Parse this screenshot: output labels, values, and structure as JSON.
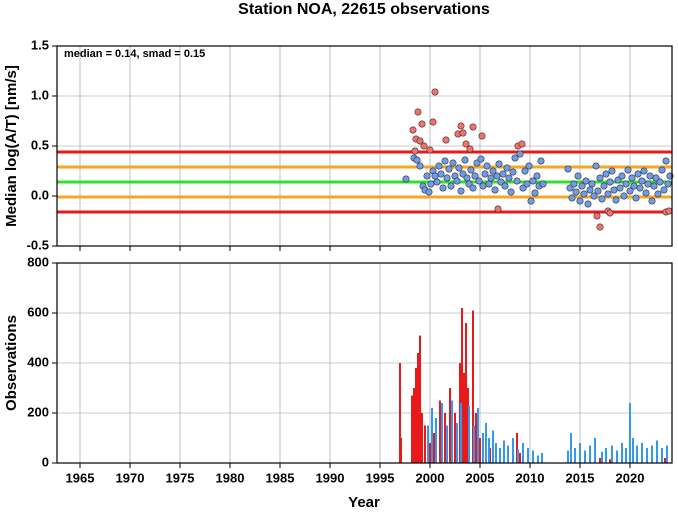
{
  "chart_data": [
    {
      "type": "scatter",
      "title": "Station NOA, 22615 observations",
      "ylabel": "Median log(A/T) [nm/s]",
      "annotation": "median = 0.14, smad = 0.15",
      "xlim": [
        1962.7,
        2024.2
      ],
      "xticks": [
        1965,
        1970,
        1975,
        1980,
        1985,
        1990,
        1995,
        2000,
        2005,
        2010,
        2015,
        2020
      ],
      "ylim": [
        -0.5,
        1.5
      ],
      "yticks": [
        -0.5,
        {
          "value": 0,
          "label": "0.0"
        },
        0.5,
        {
          "value": 1,
          "label": "1.0"
        },
        1.5
      ],
      "grid": true,
      "hlines": [
        {
          "value": 0.44,
          "color": "#e8191a"
        },
        {
          "value": 0.29,
          "color": "#f5a623"
        },
        {
          "value": 0.14,
          "color": "#2fe02f"
        },
        {
          "value": -0.01,
          "color": "#f5a623"
        },
        {
          "value": -0.16,
          "color": "#e8191a"
        }
      ],
      "series": [
        {
          "color": "#f4706a",
          "x": [
            1998.3,
            1998.6,
            1998.8,
            1999.0,
            1999.2,
            1999.4,
            2000.5,
            2000.3,
            2001.6,
            2002.8,
            2003.1,
            2003.3,
            2003.6,
            2004.0,
            2004.3,
            2005.2,
            2008.8,
            2009.2,
            2006.8,
            2017.0,
            2016.7,
            2017.8,
            2018.0,
            2023.6,
            2023.9,
            1998.5,
            2000.0
          ],
          "values": [
            0.66,
            0.57,
            0.84,
            0.55,
            0.72,
            0.5,
            1.04,
            0.74,
            0.56,
            0.62,
            0.7,
            0.63,
            0.52,
            0.47,
            0.69,
            0.6,
            0.5,
            0.52,
            -0.13,
            -0.31,
            -0.2,
            -0.15,
            -0.17,
            -0.16,
            -0.15,
            0.45,
            0.46
          ]
        },
        {
          "color": "#6f9ce8",
          "x": [
            1997.6,
            1998.4,
            1998.7,
            1999.0,
            1999.3,
            1999.5,
            1999.7,
            1999.9,
            2000.1,
            2000.3,
            2000.5,
            2000.7,
            2000.9,
            2001.1,
            2001.3,
            2001.5,
            2001.7,
            2001.9,
            2002.1,
            2002.3,
            2002.5,
            2002.7,
            2002.9,
            2003.1,
            2003.3,
            2003.5,
            2003.7,
            2003.9,
            2004.1,
            2004.3,
            2004.5,
            2004.7,
            2004.9,
            2005.1,
            2005.3,
            2005.5,
            2005.7,
            2005.9,
            2006.1,
            2006.3,
            2006.5,
            2006.7,
            2006.9,
            2007.1,
            2007.3,
            2007.5,
            2007.7,
            2007.9,
            2008.1,
            2008.3,
            2008.5,
            2008.7,
            2009.0,
            2009.3,
            2009.5,
            2009.7,
            2009.9,
            2010.1,
            2010.3,
            2010.5,
            2010.7,
            2010.9,
            2011.1,
            2011.3,
            2013.8,
            2014.0,
            2014.2,
            2014.4,
            2014.6,
            2014.8,
            2015.0,
            2015.2,
            2015.4,
            2015.6,
            2015.8,
            2016.0,
            2016.2,
            2016.4,
            2016.6,
            2016.8,
            2017.0,
            2017.2,
            2017.4,
            2017.6,
            2017.8,
            2018.0,
            2018.2,
            2018.4,
            2018.6,
            2018.8,
            2019.0,
            2019.2,
            2019.4,
            2019.6,
            2019.8,
            2020.0,
            2020.2,
            2020.4,
            2020.6,
            2020.8,
            2021.0,
            2021.2,
            2021.4,
            2021.6,
            2021.8,
            2022.0,
            2022.2,
            2022.4,
            2022.6,
            2022.8,
            2023.0,
            2023.2,
            2023.4,
            2023.6,
            2023.8,
            2024.0
          ],
          "values": [
            0.17,
            0.38,
            0.36,
            0.3,
            0.1,
            0.06,
            0.2,
            0.04,
            0.12,
            0.25,
            0.2,
            0.14,
            0.3,
            0.22,
            0.08,
            0.35,
            0.18,
            0.27,
            0.1,
            0.33,
            0.2,
            0.15,
            0.28,
            0.05,
            0.22,
            0.36,
            0.18,
            0.12,
            0.26,
            0.08,
            0.2,
            0.33,
            0.15,
            0.37,
            0.1,
            0.22,
            0.3,
            0.12,
            0.18,
            0.25,
            0.06,
            0.2,
            0.32,
            0.14,
            0.22,
            0.1,
            0.28,
            0.18,
            0.04,
            0.24,
            0.38,
            0.15,
            0.42,
            0.08,
            0.25,
            0.12,
            0.3,
            -0.05,
            0.15,
            0.03,
            0.2,
            0.1,
            0.35,
            0.12,
            0.27,
            0.08,
            -0.02,
            0.12,
            0.04,
            0.2,
            -0.05,
            0.1,
            0.02,
            0.15,
            -0.08,
            0.06,
            0.12,
            0.0,
            0.3,
            0.05,
            0.18,
            -0.03,
            0.1,
            0.22,
            0.02,
            0.14,
            0.25,
            0.06,
            -0.04,
            0.16,
            0.08,
            0.2,
            0.0,
            0.12,
            0.26,
            0.05,
            0.18,
            0.1,
            -0.02,
            0.22,
            0.08,
            0.15,
            0.25,
            0.03,
            0.12,
            0.2,
            -0.05,
            0.1,
            0.18,
            0.02,
            0.14,
            0.26,
            0.06,
            0.35,
            0.12,
            0.2
          ]
        }
      ]
    },
    {
      "type": "bar",
      "xlabel": "Year",
      "ylabel": "Observations",
      "xlim": [
        1962.7,
        2024.2
      ],
      "xticks": [
        1965,
        1970,
        1975,
        1980,
        1985,
        1990,
        1995,
        2000,
        2005,
        2010,
        2015,
        2020
      ],
      "ylim": [
        0,
        800
      ],
      "yticks": [
        0,
        200,
        400,
        600,
        800
      ],
      "grid": true,
      "series": [
        {
          "color": "#e8191a",
          "x": [
            1997.0,
            1997.1,
            1998.2,
            1998.4,
            1998.6,
            1998.8,
            1999.0,
            1999.2,
            1999.5,
            2000.0,
            2000.4,
            2001.0,
            2001.5,
            2002.0,
            2002.5,
            2003.0,
            2003.2,
            2003.4,
            2003.6,
            2003.8,
            2004.3,
            2004.6,
            2005.0,
            2006.0,
            2008.7,
            2009.0,
            2017.0,
            2018.0,
            2023.5
          ],
          "values": [
            400,
            100,
            270,
            300,
            380,
            440,
            510,
            200,
            150,
            80,
            120,
            250,
            200,
            300,
            200,
            400,
            620,
            360,
            560,
            300,
            610,
            200,
            100,
            60,
            120,
            40,
            20,
            15,
            20
          ]
        },
        {
          "color": "#3399ee",
          "x": [
            1999.8,
            2000.2,
            2000.6,
            2001.2,
            2001.7,
            2002.2,
            2002.7,
            2003.1,
            2003.9,
            2004.4,
            2004.8,
            2005.3,
            2005.6,
            2005.9,
            2006.3,
            2006.6,
            2007.0,
            2007.4,
            2007.8,
            2008.3,
            2008.8,
            2009.3,
            2009.8,
            2010.3,
            2010.8,
            2011.2,
            2013.8,
            2014.1,
            2014.5,
            2015.0,
            2015.5,
            2016.0,
            2016.5,
            2017.2,
            2017.6,
            2018.2,
            2018.7,
            2019.2,
            2019.6,
            2020.0,
            2020.3,
            2020.7,
            2021.2,
            2021.7,
            2022.2,
            2022.7,
            2023.2,
            2023.7
          ],
          "values": [
            150,
            220,
            180,
            240,
            150,
            250,
            160,
            240,
            230,
            150,
            220,
            120,
            160,
            100,
            130,
            80,
            60,
            90,
            70,
            100,
            55,
            80,
            60,
            50,
            30,
            40,
            50,
            120,
            60,
            80,
            50,
            70,
            100,
            45,
            60,
            70,
            50,
            80,
            60,
            240,
            100,
            70,
            80,
            60,
            70,
            90,
            60,
            70
          ]
        }
      ]
    }
  ]
}
